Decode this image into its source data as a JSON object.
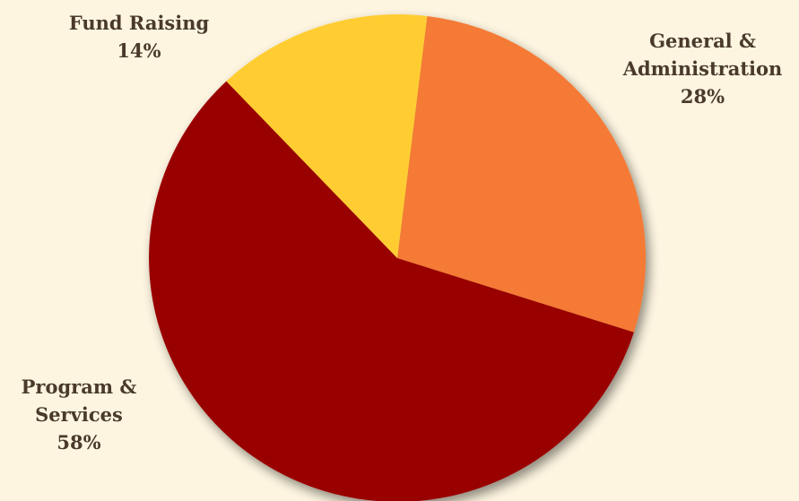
{
  "chart_data": {
    "type": "pie",
    "slices": [
      {
        "name": "General & Administration",
        "value": 28,
        "label_lines": [
          "General &",
          "Administration"
        ],
        "pct_label": "28%",
        "color": "#f47a35"
      },
      {
        "name": "Program & Services",
        "value": 58,
        "label_lines": [
          "Program &",
          "Services"
        ],
        "pct_label": "58%",
        "color": "#990000"
      },
      {
        "name": "Fund Raising",
        "value": 14,
        "label_lines": [
          "Fund Raising"
        ],
        "pct_label": "14%",
        "color": "#ffcd33"
      }
    ]
  }
}
